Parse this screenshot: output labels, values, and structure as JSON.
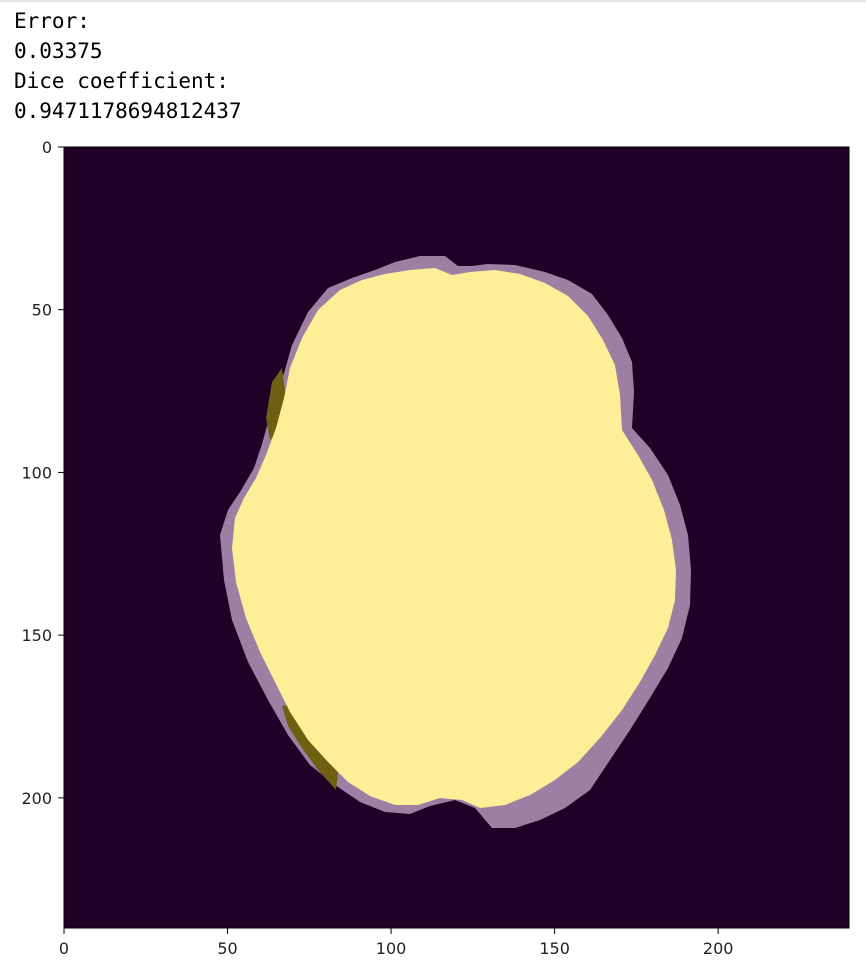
{
  "output": {
    "lines": [
      "Error:",
      "0.03375",
      "Dice coefficient:",
      "0.9471178694812437"
    ]
  },
  "colors": {
    "background": "#1f0026",
    "prediction_overlay": "#9e7fa4",
    "overlap": "#fdee97",
    "ground_truth_only": "#6e5f12"
  },
  "chart_data": {
    "type": "heatmap",
    "title": "",
    "xlabel": "",
    "ylabel": "",
    "xlim": [
      0,
      240
    ],
    "ylim": [
      240,
      0
    ],
    "x_ticks": [
      0,
      50,
      100,
      150,
      200
    ],
    "y_ticks": [
      0,
      50,
      100,
      150,
      200
    ],
    "grid": false,
    "legend": "none"
  }
}
